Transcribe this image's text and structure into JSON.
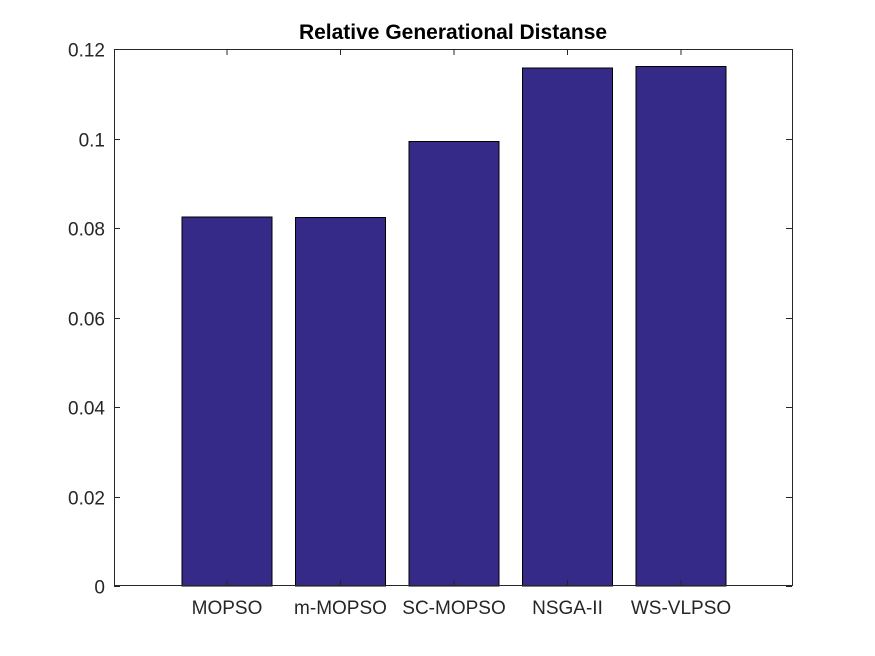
{
  "chart_data": {
    "type": "bar",
    "title": "Relative Generational Distanse",
    "xlabel": "",
    "ylabel": "",
    "categories": [
      "MOPSO",
      "m-MOPSO",
      "SC-MOPSO",
      "NSGA-II",
      "WS-VLPSO"
    ],
    "values": [
      0.0825,
      0.0823,
      0.0993,
      0.1157,
      0.1161
    ],
    "ylim": [
      0,
      0.12
    ],
    "yticks": [
      0,
      0.02,
      0.04,
      0.06,
      0.08,
      0.1,
      0.12
    ],
    "ytick_labels": [
      "0",
      "0.02",
      "0.04",
      "0.06",
      "0.08",
      "0.1",
      "0.12"
    ],
    "bar_color": "#352a87",
    "grid": false,
    "box": true
  }
}
